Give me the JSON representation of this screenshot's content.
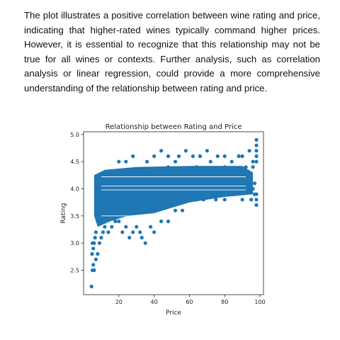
{
  "document": {
    "paragraph": "The plot illustrates a positive correlation between wine rating and price, indicating that higher-rated wines typically command higher prices. However, it is essential to recognize that this relationship may not be true for all wines or contexts. Further analysis, such as correlation analysis or linear regression, could provide a more comprehensive understanding of the relationship between rating and price."
  },
  "colors": {
    "point": "#1f77b4",
    "axis": "#222222",
    "background": "#ffffff"
  },
  "chart_data": {
    "type": "scatter",
    "title": "Relationship between Rating and Price",
    "xlabel": "Price",
    "ylabel": "Rating",
    "xlim": [
      0,
      102
    ],
    "ylim": [
      2.05,
      5.05
    ],
    "xticks": [
      20,
      40,
      60,
      80,
      100
    ],
    "yticks": [
      2.5,
      3.0,
      3.5,
      4.0,
      4.5,
      5.0
    ],
    "grid": false,
    "legend": "none",
    "series": [
      {
        "points": [
          [
            4.5,
            2.2
          ],
          [
            5.0,
            2.5
          ],
          [
            6.0,
            2.5
          ],
          [
            5.5,
            2.6
          ],
          [
            7.0,
            2.7
          ],
          [
            8.0,
            2.8
          ],
          [
            4.8,
            2.8
          ],
          [
            5.5,
            2.9
          ],
          [
            6.0,
            3.0
          ],
          [
            6.5,
            3.1
          ],
          [
            7.0,
            3.2
          ],
          [
            5.0,
            3.0
          ],
          [
            9.0,
            3.0
          ],
          [
            10.0,
            3.1
          ],
          [
            11.0,
            3.2
          ],
          [
            8.0,
            3.4
          ],
          [
            12.0,
            3.3
          ],
          [
            14.0,
            3.2
          ],
          [
            16.0,
            3.3
          ],
          [
            18.0,
            3.4
          ],
          [
            20.0,
            3.4
          ],
          [
            22.0,
            3.2
          ],
          [
            24.0,
            3.3
          ],
          [
            26.0,
            3.1
          ],
          [
            28.0,
            3.2
          ],
          [
            30.0,
            3.3
          ],
          [
            32.0,
            3.2
          ],
          [
            33.0,
            3.1
          ],
          [
            35.0,
            3.0
          ],
          [
            38.0,
            3.3
          ],
          [
            40.0,
            3.2
          ],
          [
            44.0,
            3.4
          ],
          [
            48.0,
            3.4
          ],
          [
            52.0,
            3.6
          ],
          [
            56.0,
            3.6
          ],
          [
            60.0,
            3.8
          ],
          [
            64.0,
            3.8
          ],
          [
            68.0,
            3.8
          ],
          [
            75.0,
            3.8
          ],
          [
            80.0,
            3.8
          ],
          [
            86.0,
            3.9
          ],
          [
            90.0,
            3.8
          ],
          [
            95.0,
            3.8
          ],
          [
            98.0,
            3.7
          ],
          [
            98.0,
            3.8
          ],
          [
            20.0,
            4.5
          ],
          [
            24.0,
            4.5
          ],
          [
            28.0,
            4.6
          ],
          [
            36.0,
            4.5
          ],
          [
            40.0,
            4.6
          ],
          [
            48.0,
            4.6
          ],
          [
            52.0,
            4.5
          ],
          [
            54.0,
            4.6
          ],
          [
            58.0,
            4.7
          ],
          [
            62.0,
            4.6
          ],
          [
            66.0,
            4.6
          ],
          [
            70.0,
            4.7
          ],
          [
            72.0,
            4.5
          ],
          [
            76.0,
            4.6
          ],
          [
            80.0,
            4.6
          ],
          [
            84.0,
            4.5
          ],
          [
            88.0,
            4.6
          ],
          [
            90.0,
            4.6
          ],
          [
            94.0,
            4.7
          ],
          [
            96.0,
            4.5
          ],
          [
            98.0,
            4.6
          ],
          [
            98.0,
            4.7
          ],
          [
            98.0,
            4.8
          ],
          [
            98.0,
            4.9
          ],
          [
            98.0,
            4.5
          ],
          [
            44.0,
            4.7
          ],
          [
            48.0,
            4.4
          ],
          [
            64.0,
            4.4
          ],
          [
            80.0,
            4.4
          ],
          [
            92.0,
            4.4
          ],
          [
            96.0,
            4.4
          ],
          [
            98.0,
            3.9
          ],
          [
            97.0,
            4.1
          ],
          [
            95.0,
            4.2
          ],
          [
            96.0,
            4.0
          ],
          [
            97.0,
            3.9
          ]
        ]
      }
    ]
  }
}
